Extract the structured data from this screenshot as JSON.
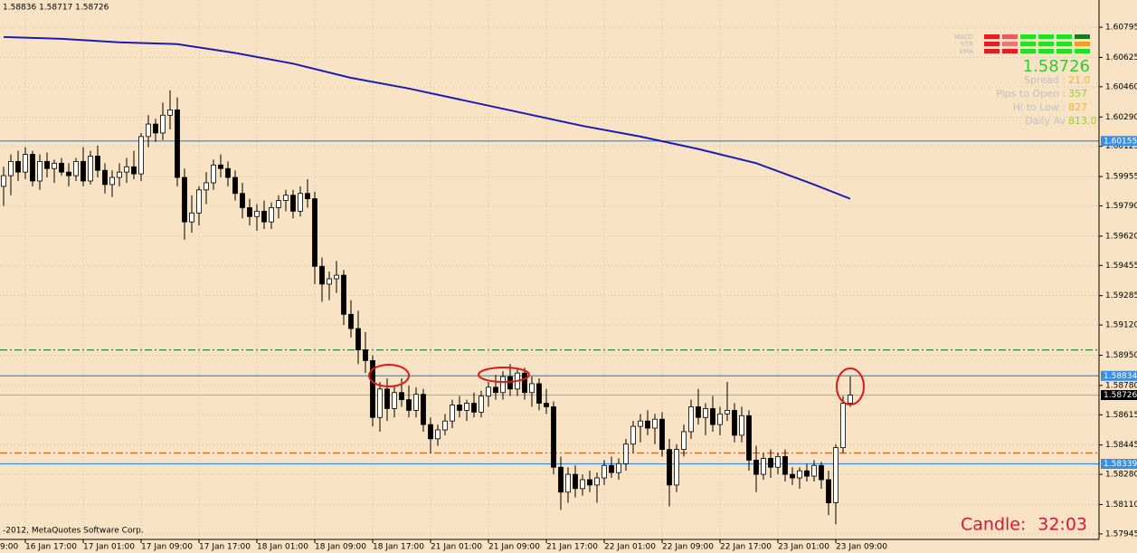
{
  "header": "1.58836 1.58717 1.58726",
  "footer": "-2012, MetaQuotes Software Corp.",
  "timer": {
    "label": "Candle:",
    "value": "32:03"
  },
  "panel": {
    "indicators": [
      "MACD",
      "STR",
      "EMA"
    ],
    "price": "1.58726",
    "rows": [
      {
        "label": "Spread :",
        "value": "21.0",
        "color": "#e8b830"
      },
      {
        "label": "Pips to Open :",
        "value": "357",
        "color": "#9acd32"
      },
      {
        "label": "Hi to Low :",
        "value": "827",
        "color": "#e8b830"
      },
      {
        "label": "Daily Av",
        "value": "813.0",
        "color": "#9acd32"
      }
    ]
  },
  "chart_data": {
    "type": "candlestick",
    "ylim": [
      1.57914,
      1.60948
    ],
    "yticks": [
      1.60795,
      1.60625,
      {
        "value": 1.6046,
        "label": "1.60460"
      },
      {
        "value": 1.6029,
        "label": "1.60290"
      },
      1.60125,
      1.59955,
      {
        "value": 1.5979,
        "label": "1.59790"
      },
      {
        "value": 1.5962,
        "label": "1.59620"
      },
      1.59455,
      1.59285,
      {
        "value": 1.5912,
        "label": "1.59120"
      },
      {
        "value": 1.5895,
        "label": "1.58950"
      },
      {
        "value": 1.5878,
        "label": "1.58780"
      },
      1.58615,
      1.58445,
      {
        "value": 1.5828,
        "label": "1.58280"
      },
      {
        "value": 1.5811,
        "label": "1.58110"
      },
      1.57945
    ],
    "x_cut_label": "9:00",
    "xticks": [
      {
        "value": 3,
        "label": "16 Jan 17:00"
      },
      {
        "value": 11,
        "label": "17 Jan 01:00"
      },
      {
        "value": 19,
        "label": "17 Jan 09:00"
      },
      {
        "value": 27,
        "label": "17 Jan 17:00"
      },
      {
        "value": 35,
        "label": "18 Jan 01:00"
      },
      {
        "value": 43,
        "label": "18 Jan 09:00"
      },
      {
        "value": 51,
        "label": "18 Jan 17:00"
      },
      {
        "value": 59,
        "label": "21 Jan 01:00"
      },
      {
        "value": 67,
        "label": "21 Jan 09:00"
      },
      {
        "value": 75,
        "label": "21 Jan 17:00"
      },
      {
        "value": 83,
        "label": "22 Jan 01:00"
      },
      {
        "value": 91,
        "label": "22 Jan 09:00"
      },
      {
        "value": 99,
        "label": "22 Jan 17:00"
      },
      {
        "value": 107,
        "label": "23 Jan 01:00"
      },
      {
        "value": 115,
        "label": "23 Jan 09:00"
      }
    ],
    "grid": true,
    "candles": [
      [
        1.599,
        1.6001,
        1.5979,
        1.5996
      ],
      [
        1.5996,
        1.6008,
        1.5985,
        1.6004
      ],
      [
        1.6004,
        1.601,
        1.5993,
        1.5998
      ],
      [
        1.5998,
        1.6012,
        1.5994,
        1.6008
      ],
      [
        1.6008,
        1.601,
        1.599,
        1.5993
      ],
      [
        1.5993,
        1.6008,
        1.5988,
        1.6004
      ],
      [
        1.6004,
        1.6009,
        1.5995,
        1.6
      ],
      [
        1.6,
        1.6005,
        1.5992,
        1.6003
      ],
      [
        1.6003,
        1.6006,
        1.5996,
        1.5998
      ],
      [
        1.5998,
        1.6003,
        1.599,
        1.5996
      ],
      [
        1.5996,
        1.6006,
        1.5993,
        1.6004
      ],
      [
        1.6004,
        1.6012,
        1.599,
        1.5993
      ],
      [
        1.5993,
        1.601,
        1.5991,
        1.6007
      ],
      [
        1.6007,
        1.6013,
        1.5995,
        1.5999
      ],
      [
        1.5999,
        1.6003,
        1.5986,
        1.5991
      ],
      [
        1.5991,
        1.5999,
        1.5984,
        1.5995
      ],
      [
        1.5995,
        1.6003,
        1.599,
        1.5998
      ],
      [
        1.5998,
        1.6006,
        1.5992,
        1.6001
      ],
      [
        1.6001,
        1.601,
        1.5994,
        1.5997
      ],
      [
        1.5997,
        1.602,
        1.5993,
        1.6018
      ],
      [
        1.6018,
        1.603,
        1.6012,
        1.6025
      ],
      [
        1.6025,
        1.6028,
        1.6015,
        1.602
      ],
      [
        1.602,
        1.6037,
        1.6016,
        1.603
      ],
      [
        1.603,
        1.6044,
        1.6022,
        1.6033
      ],
      [
        1.6033,
        1.604,
        1.599,
        1.5995
      ],
      [
        1.5995,
        1.6,
        1.596,
        1.597
      ],
      [
        1.597,
        1.5985,
        1.5964,
        1.5975
      ],
      [
        1.5975,
        1.599,
        1.5968,
        1.5988
      ],
      [
        1.5988,
        1.5998,
        1.598,
        1.5992
      ],
      [
        1.5992,
        1.6005,
        1.5988,
        1.6002
      ],
      [
        1.6002,
        1.6008,
        1.5995,
        1.6
      ],
      [
        1.6,
        1.6004,
        1.599,
        1.5995
      ],
      [
        1.5995,
        1.5999,
        1.5982,
        1.5986
      ],
      [
        1.5986,
        1.5992,
        1.5972,
        1.5978
      ],
      [
        1.5978,
        1.5983,
        1.5968,
        1.5973
      ],
      [
        1.5973,
        1.598,
        1.5965,
        1.5976
      ],
      [
        1.5976,
        1.5982,
        1.5966,
        1.597
      ],
      [
        1.597,
        1.5981,
        1.5966,
        1.5978
      ],
      [
        1.5978,
        1.5985,
        1.5972,
        1.5982
      ],
      [
        1.5982,
        1.5988,
        1.5976,
        1.5985
      ],
      [
        1.5985,
        1.5988,
        1.5972,
        1.5976
      ],
      [
        1.5976,
        1.599,
        1.5973,
        1.5986
      ],
      [
        1.5986,
        1.5994,
        1.5978,
        1.5983
      ],
      [
        1.5983,
        1.5987,
        1.5935,
        1.5945
      ],
      [
        1.5945,
        1.595,
        1.5925,
        1.5935
      ],
      [
        1.5935,
        1.5942,
        1.5926,
        1.5938
      ],
      [
        1.5938,
        1.5948,
        1.593,
        1.594
      ],
      [
        1.594,
        1.5943,
        1.5912,
        1.5918
      ],
      [
        1.5918,
        1.5926,
        1.5905,
        1.591
      ],
      [
        1.591,
        1.592,
        1.589,
        1.5898
      ],
      [
        1.5898,
        1.5908,
        1.5885,
        1.5892
      ],
      [
        1.5892,
        1.5895,
        1.5855,
        1.586
      ],
      [
        1.586,
        1.588,
        1.5852,
        1.5876
      ],
      [
        1.5876,
        1.5882,
        1.5858,
        1.5865
      ],
      [
        1.5865,
        1.5878,
        1.586,
        1.5874
      ],
      [
        1.5874,
        1.5882,
        1.5866,
        1.587
      ],
      [
        1.587,
        1.5878,
        1.586,
        1.5864
      ],
      [
        1.5864,
        1.5877,
        1.586,
        1.5873
      ],
      [
        1.5873,
        1.5876,
        1.5852,
        1.5856
      ],
      [
        1.5856,
        1.586,
        1.584,
        1.5848
      ],
      [
        1.5848,
        1.5856,
        1.5844,
        1.5853
      ],
      [
        1.5853,
        1.5862,
        1.585,
        1.5858
      ],
      [
        1.5858,
        1.587,
        1.5854,
        1.5867
      ],
      [
        1.5867,
        1.5872,
        1.586,
        1.5864
      ],
      [
        1.5864,
        1.587,
        1.5858,
        1.5868
      ],
      [
        1.5868,
        1.5874,
        1.586,
        1.5863
      ],
      [
        1.5863,
        1.5875,
        1.586,
        1.5872
      ],
      [
        1.5872,
        1.588,
        1.5866,
        1.5877
      ],
      [
        1.5877,
        1.5884,
        1.587,
        1.5874
      ],
      [
        1.5874,
        1.5886,
        1.587,
        1.5883
      ],
      [
        1.5883,
        1.589,
        1.5872,
        1.5876
      ],
      [
        1.5876,
        1.5888,
        1.5872,
        1.5885
      ],
      [
        1.5885,
        1.5888,
        1.587,
        1.5874
      ],
      [
        1.5874,
        1.5883,
        1.5866,
        1.5879
      ],
      [
        1.5879,
        1.5882,
        1.5864,
        1.5868
      ],
      [
        1.5868,
        1.5876,
        1.5862,
        1.5866
      ],
      [
        1.5866,
        1.5869,
        1.5828,
        1.5832
      ],
      [
        1.5832,
        1.5838,
        1.5808,
        1.5818
      ],
      [
        1.5818,
        1.5832,
        1.5812,
        1.5828
      ],
      [
        1.5828,
        1.5833,
        1.5815,
        1.582
      ],
      [
        1.582,
        1.5828,
        1.5816,
        1.5825
      ],
      [
        1.5825,
        1.583,
        1.5818,
        1.5822
      ],
      [
        1.5822,
        1.5829,
        1.5812,
        1.5826
      ],
      [
        1.5826,
        1.5836,
        1.5822,
        1.5833
      ],
      [
        1.5833,
        1.5838,
        1.5826,
        1.5829
      ],
      [
        1.5829,
        1.5837,
        1.5825,
        1.5834
      ],
      [
        1.5834,
        1.5848,
        1.583,
        1.5845
      ],
      [
        1.5845,
        1.5858,
        1.584,
        1.5855
      ],
      [
        1.5855,
        1.5862,
        1.5846,
        1.5858
      ],
      [
        1.5858,
        1.5864,
        1.585,
        1.5854
      ],
      [
        1.5854,
        1.5862,
        1.5845,
        1.5859
      ],
      [
        1.5859,
        1.5863,
        1.5838,
        1.5842
      ],
      [
        1.5842,
        1.5848,
        1.581,
        1.5822
      ],
      [
        1.5822,
        1.5845,
        1.5818,
        1.5842
      ],
      [
        1.5842,
        1.5856,
        1.5838,
        1.5852
      ],
      [
        1.5852,
        1.587,
        1.5848,
        1.5866
      ],
      [
        1.5866,
        1.5876,
        1.5856,
        1.586
      ],
      [
        1.586,
        1.5868,
        1.585,
        1.5865
      ],
      [
        1.5865,
        1.5872,
        1.5852,
        1.5856
      ],
      [
        1.5856,
        1.5866,
        1.585,
        1.5862
      ],
      [
        1.5862,
        1.588,
        1.5858,
        1.5864
      ],
      [
        1.5864,
        1.5868,
        1.5846,
        1.585
      ],
      [
        1.585,
        1.5866,
        1.5846,
        1.5861
      ],
      [
        1.5861,
        1.5864,
        1.583,
        1.5836
      ],
      [
        1.5836,
        1.5844,
        1.5818,
        1.5828
      ],
      [
        1.5828,
        1.584,
        1.5825,
        1.5837
      ],
      [
        1.5837,
        1.5842,
        1.5826,
        1.5832
      ],
      [
        1.5832,
        1.584,
        1.5828,
        1.5838
      ],
      [
        1.5838,
        1.5842,
        1.5824,
        1.5828
      ],
      [
        1.5828,
        1.5832,
        1.5822,
        1.5826
      ],
      [
        1.5826,
        1.5832,
        1.582,
        1.583
      ],
      [
        1.583,
        1.5834,
        1.5824,
        1.5827
      ],
      [
        1.5827,
        1.5836,
        1.5824,
        1.5833
      ],
      [
        1.5833,
        1.5835,
        1.582,
        1.5825
      ],
      [
        1.5825,
        1.583,
        1.5805,
        1.5812
      ],
      [
        1.5812,
        1.5845,
        1.58,
        1.5843
      ],
      [
        1.5843,
        1.5872,
        1.584,
        1.5868
      ],
      [
        1.5868,
        1.5883,
        1.5866,
        1.58726
      ]
    ],
    "ma": {
      "color": "#1c1cb4",
      "x": [
        0,
        8,
        16,
        24,
        32,
        40,
        48,
        56,
        64,
        72,
        80,
        88,
        96,
        104,
        112,
        117
      ],
      "values": [
        1.6074,
        1.6073,
        1.6071,
        1.607,
        1.6065,
        1.6059,
        1.6051,
        1.6045,
        1.6038,
        1.6031,
        1.6024,
        1.6018,
        1.6011,
        1.6003,
        1.5991,
        1.5983
      ]
    },
    "levels": [
      {
        "value": 1.60155,
        "color": "#3a8ee6",
        "style": "solid",
        "label_bg": "#3a8ee6"
      },
      {
        "value": 1.5898,
        "color": "#2e8b2e",
        "style": "dashdot"
      },
      {
        "value": 1.58834,
        "color": "#3a8ee6",
        "style": "solid",
        "label_bg": "#3a8ee6"
      },
      {
        "value": 1.58726,
        "color": "#b8b0a0",
        "style": "solid",
        "label_bg": "#000000"
      },
      {
        "value": 1.584,
        "color": "#e05a20",
        "style": "dashdot"
      },
      {
        "value": 1.58339,
        "color": "#3a8ee6",
        "style": "solid",
        "label_bg": "#3a8ee6"
      }
    ]
  }
}
